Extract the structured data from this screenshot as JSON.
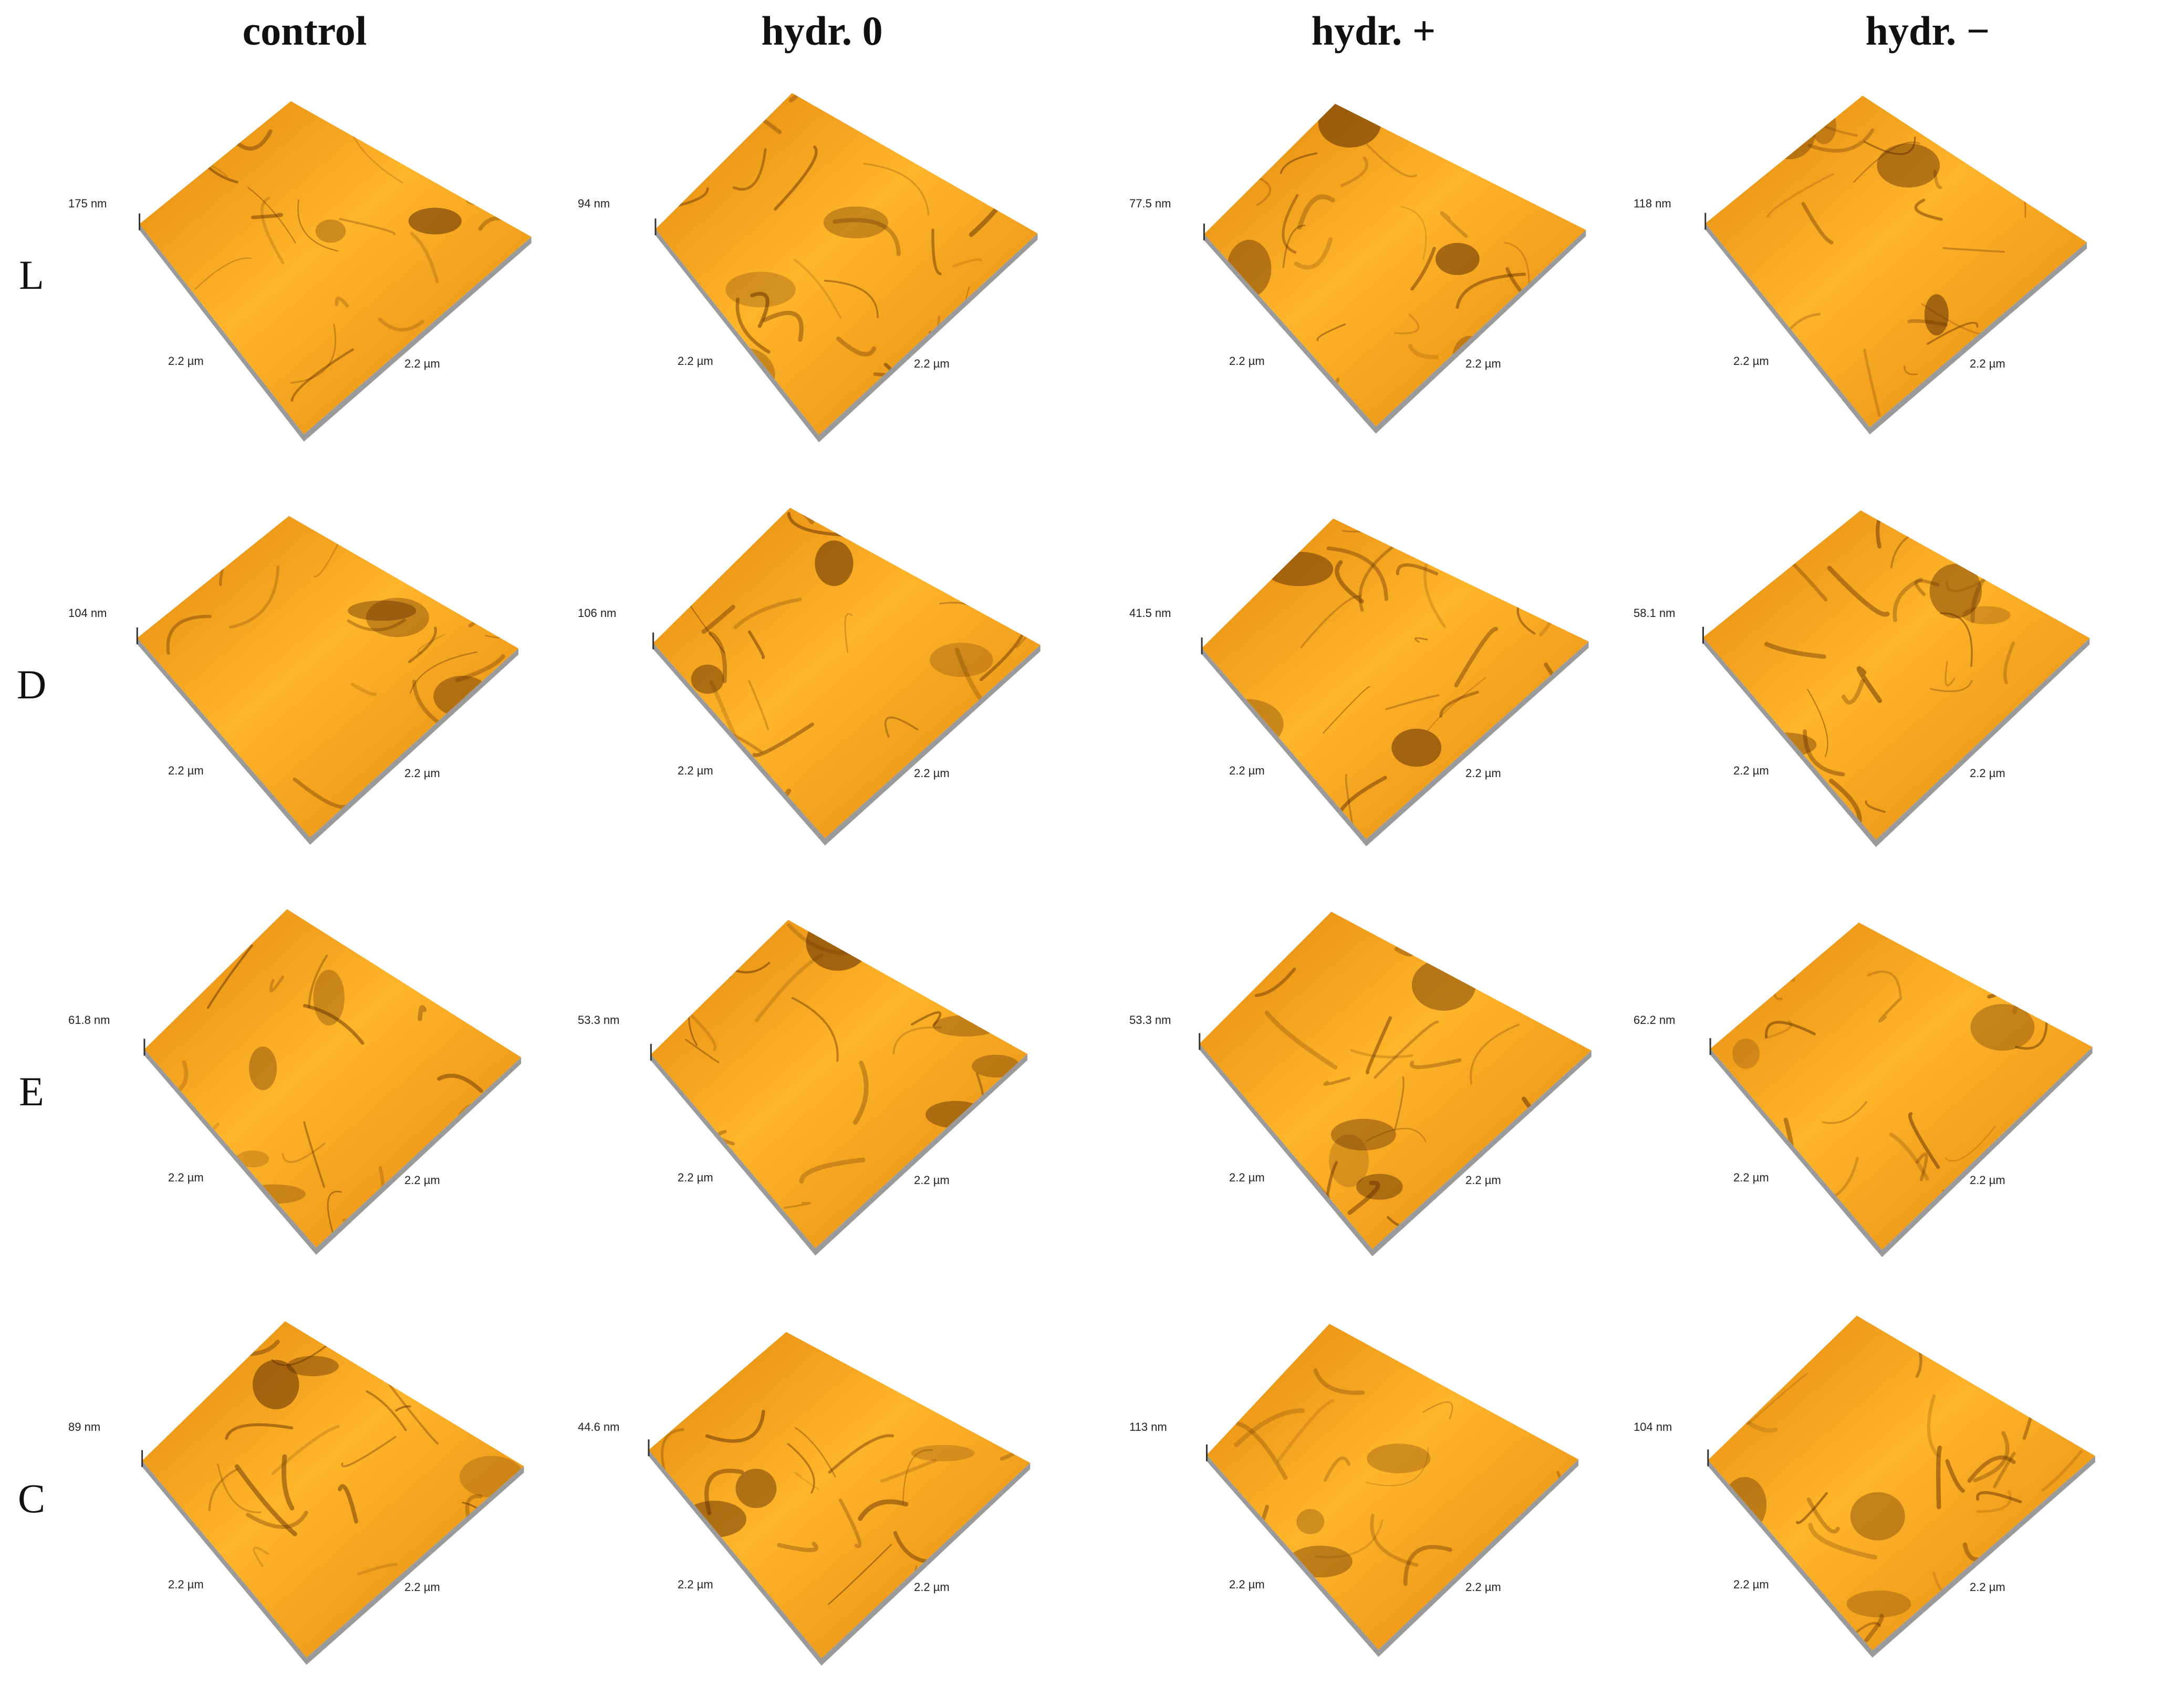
{
  "columns": [
    "control",
    "hydr. 0",
    "hydr. +",
    "hydr. −"
  ],
  "rows": [
    "L",
    "D",
    "E",
    "C"
  ],
  "colors": {
    "surface_light": "#ffb52a",
    "surface_mid": "#e0870d",
    "surface_dark": "#5a2a00",
    "edge": "#9a9a9a"
  },
  "cells": [
    [
      {
        "height": "175 nm",
        "axis_left": "2.2 µm",
        "axis_right": "2.2 µm"
      },
      {
        "height": "94 nm",
        "axis_left": "2.2 µm",
        "axis_right": "2.2 µm"
      },
      {
        "height": "77.5 nm",
        "axis_left": "2.2 µm",
        "axis_right": "2.2 µm"
      },
      {
        "height": "118 nm",
        "axis_left": "2.2 µm",
        "axis_right": "2.2 µm"
      }
    ],
    [
      {
        "height": "104 nm",
        "axis_left": "2.2 µm",
        "axis_right": "2.2 µm"
      },
      {
        "height": "106 nm",
        "axis_left": "2.2 µm",
        "axis_right": "2.2 µm"
      },
      {
        "height": "41.5 nm",
        "axis_left": "2.2 µm",
        "axis_right": "2.2 µm"
      },
      {
        "height": "58.1 nm",
        "axis_left": "2.2 µm",
        "axis_right": "2.2 µm"
      }
    ],
    [
      {
        "height": "61.8 nm",
        "axis_left": "2.2 µm",
        "axis_right": "2.2 µm"
      },
      {
        "height": "53.3 nm",
        "axis_left": "2.2 µm",
        "axis_right": "2.2 µm"
      },
      {
        "height": "53.3 nm",
        "axis_left": "2.2 µm",
        "axis_right": "2.2 µm"
      },
      {
        "height": "62.2 nm",
        "axis_left": "2.2 µm",
        "axis_right": "2.2 µm"
      }
    ],
    [
      {
        "height": "89 nm",
        "axis_left": "2.2 µm",
        "axis_right": "2.2 µm"
      },
      {
        "height": "44.6 nm",
        "axis_left": "2.2 µm",
        "axis_right": "2.2 µm"
      },
      {
        "height": "113 nm",
        "axis_left": "2.2 µm",
        "axis_right": "2.2 µm"
      },
      {
        "height": "104 nm",
        "axis_left": "2.2 µm",
        "axis_right": "2.2 µm"
      }
    ]
  ]
}
